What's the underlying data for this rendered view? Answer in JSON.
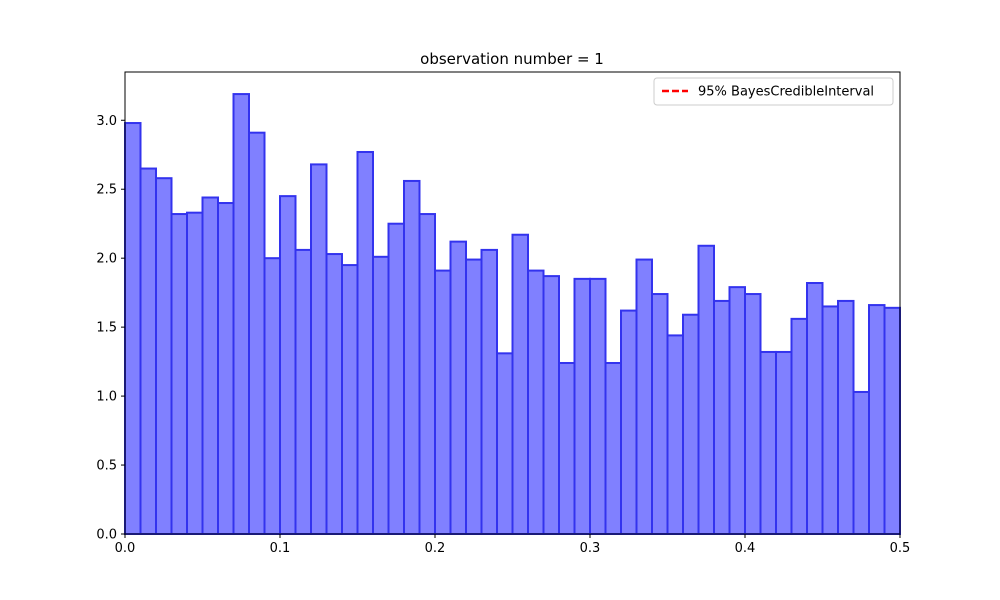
{
  "chart_data": {
    "type": "bar",
    "title": "observation number = 1",
    "xlabel": "",
    "ylabel": "",
    "xlim": [
      0.0,
      0.5
    ],
    "ylim": [
      0.0,
      3.35
    ],
    "grid": false,
    "bin_width": 0.01,
    "bin_starts": [
      0.0,
      0.01,
      0.02,
      0.03,
      0.04,
      0.05,
      0.06,
      0.07,
      0.08,
      0.09,
      0.1,
      0.11,
      0.12,
      0.13,
      0.14,
      0.15,
      0.16,
      0.17,
      0.18,
      0.19,
      0.2,
      0.21,
      0.22,
      0.23,
      0.24,
      0.25,
      0.26,
      0.27,
      0.28,
      0.29,
      0.3,
      0.31,
      0.32,
      0.33,
      0.34,
      0.35,
      0.36,
      0.37,
      0.38,
      0.39,
      0.4,
      0.41,
      0.42,
      0.43,
      0.44,
      0.45,
      0.46,
      0.47,
      0.48,
      0.49
    ],
    "values": [
      2.98,
      2.65,
      2.58,
      2.32,
      2.33,
      2.44,
      2.4,
      3.19,
      2.91,
      2.0,
      2.45,
      2.06,
      2.68,
      2.03,
      1.95,
      2.77,
      2.01,
      2.25,
      2.56,
      2.32,
      1.91,
      2.12,
      1.99,
      2.06,
      1.31,
      2.17,
      1.91,
      1.87,
      1.24,
      1.85,
      1.85,
      1.24,
      1.62,
      1.99,
      1.74,
      1.44,
      1.59,
      2.09,
      1.69,
      1.79,
      1.74,
      1.32,
      1.32,
      1.56,
      1.82,
      1.65,
      1.69,
      1.03,
      1.66,
      1.64
    ],
    "x_ticks": [
      {
        "value": 0.0,
        "label": "0.0"
      },
      {
        "value": 0.1,
        "label": "0.1"
      },
      {
        "value": 0.2,
        "label": "0.2"
      },
      {
        "value": 0.3,
        "label": "0.3"
      },
      {
        "value": 0.4,
        "label": "0.4"
      },
      {
        "value": 0.5,
        "label": "0.5"
      }
    ],
    "y_ticks": [
      {
        "value": 0.0,
        "label": "0.0"
      },
      {
        "value": 0.5,
        "label": "0.5"
      },
      {
        "value": 1.0,
        "label": "1.0"
      },
      {
        "value": 1.5,
        "label": "1.5"
      },
      {
        "value": 2.0,
        "label": "2.0"
      },
      {
        "value": 2.5,
        "label": "2.5"
      },
      {
        "value": 3.0,
        "label": "3.0"
      }
    ],
    "bar_fill": "#8080ff",
    "bar_edge": "#3333ee",
    "legend": {
      "placement": "top-right",
      "entries": [
        {
          "label": "95% BayesCredibleInterval",
          "color": "#ff0000",
          "style": "dashed"
        }
      ]
    }
  }
}
